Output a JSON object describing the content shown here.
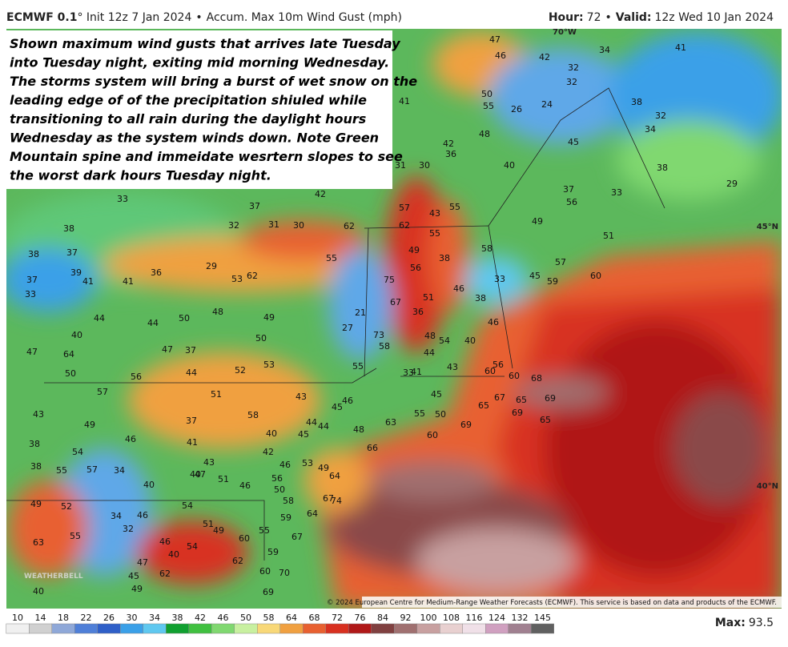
{
  "header": {
    "left": [
      "ECMWF 0.1",
      "° Init 12z 7 Jan 2024",
      "•",
      "Accum. Max 10m Wind Gust (mph)"
    ],
    "right": [
      "Hour:",
      "72",
      "•",
      "Valid:",
      "12z Wed 10 Jan 2024"
    ]
  },
  "annotation": [
    "Shown maximum wind gusts that arrives late Tuesday",
    "into Tuesday night, exiting mid morning Wednesday.",
    "The storms system will bring a burst of wet snow on the",
    "leading edge of of the precipitation shiuled while",
    "transitioning to all rain during the daylight hours",
    "Wednesday as the system winds down. Note Green",
    "Mountain spine and immeidate wesrtern slopes to see",
    "the worst dark hours Tuesday night."
  ],
  "grid_labels": [
    "70°W",
    "45°N",
    "40°N"
  ],
  "logo": "WEATHERBELL",
  "copyright": "© 2024 European Centre for Medium-Range Weather Forecasts (ECMWF). This service is based on data and products of the ECMWF.",
  "max": {
    "label": "Max:",
    "value": 93.5
  },
  "colorbar": {
    "ticks": [
      10,
      14,
      18,
      22,
      26,
      30,
      34,
      38,
      42,
      46,
      50,
      58,
      64,
      68,
      72,
      76,
      84,
      92,
      100,
      108,
      116,
      124,
      132,
      145
    ],
    "colors": [
      "#f0f0f0",
      "#d0d0d0",
      "#8fa8d8",
      "#4f7fd8",
      "#2f5fc8",
      "#3aa0e8",
      "#5fc8f0",
      "#10a030",
      "#40c040",
      "#80d870",
      "#c8f0a0",
      "#f8d878",
      "#f0a040",
      "#e86030",
      "#d83020",
      "#b01818",
      "#804040",
      "#a07070",
      "#c8a0a0",
      "#e8d0d0",
      "#f0e0e8",
      "#d0a0c0",
      "#a08090",
      "#606060"
    ]
  },
  "map_labels": [
    47,
    46,
    42,
    32,
    34,
    41,
    32,
    50,
    55,
    41,
    26,
    24,
    38,
    32,
    34,
    48,
    45,
    42,
    36,
    30,
    31,
    40,
    38,
    37,
    56,
    33,
    29,
    42,
    33,
    37,
    32,
    31,
    30,
    62,
    57,
    43,
    55,
    62,
    55,
    49,
    51,
    38,
    38,
    37,
    57,
    55,
    49,
    38,
    58,
    56,
    62,
    53,
    29,
    36,
    41,
    41,
    37,
    39,
    33,
    75,
    33,
    45,
    59,
    60,
    67,
    51,
    46,
    48,
    49,
    44,
    44,
    50,
    21,
    27,
    36,
    38,
    73,
    58,
    48,
    54,
    40,
    46,
    50,
    40,
    64,
    47,
    37,
    47,
    44,
    33,
    41,
    43,
    55,
    60,
    56,
    60,
    68,
    53,
    52,
    44,
    56,
    50,
    57,
    51,
    43,
    46,
    45,
    45,
    67,
    65,
    69,
    65,
    58,
    43,
    44,
    55,
    50,
    69,
    65,
    37,
    49,
    46,
    63,
    48,
    45,
    44,
    40,
    69,
    60,
    41,
    38,
    54,
    42,
    66,
    53,
    46,
    43,
    34,
    57,
    55,
    38,
    40,
    47,
    51,
    46,
    56,
    49,
    64,
    50,
    40,
    49,
    52,
    54,
    58,
    67,
    74,
    34,
    46,
    64,
    59,
    32,
    51,
    49,
    55,
    55,
    46,
    60,
    54,
    67,
    63,
    40,
    47,
    59,
    62,
    62,
    45,
    49,
    60,
    70,
    40,
    69
  ]
}
